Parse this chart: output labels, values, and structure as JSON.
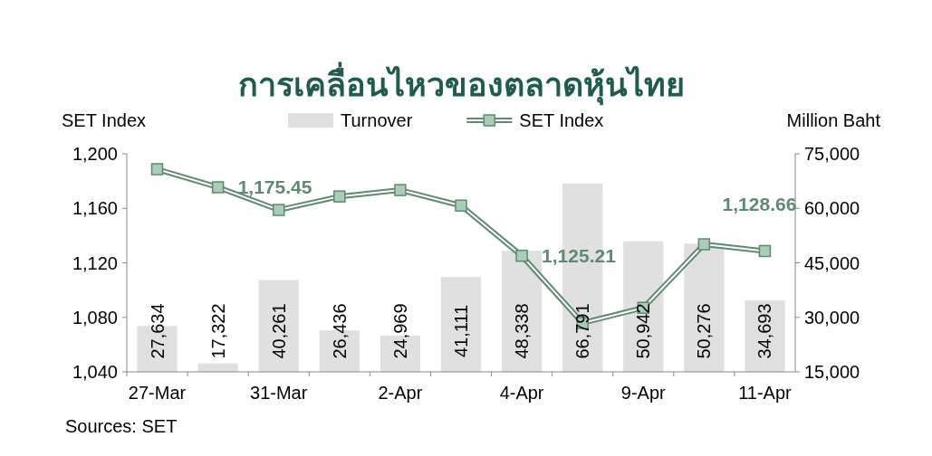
{
  "chart_data": {
    "type": "bar",
    "title": "การเคลื่อนไหวของตลาดหุ้นไทย",
    "ylabel": "SET Index",
    "y2label": "Million Baht",
    "categories": [
      "27-Mar",
      null,
      "31-Mar",
      null,
      "2-Apr",
      null,
      "4-Apr",
      null,
      "9-Apr",
      null,
      "11-Apr"
    ],
    "series": [
      {
        "name": "Turnover",
        "axis": "y2",
        "color": "#e0e0e0",
        "values": [
          27634,
          17322,
          40261,
          26436,
          24969,
          41111,
          48338,
          66791,
          50942,
          50276,
          34693
        ],
        "value_labels": [
          "27,634",
          "17,322",
          "40,261",
          "26,436",
          "24,969",
          "41,111",
          "48,338",
          "66,791",
          "50,942",
          "50,276",
          "34,693"
        ]
      },
      {
        "name": "SET Index",
        "type": "line",
        "color": "#5e8a70",
        "marker": "square",
        "values": [
          1188.7,
          1175.45,
          1158.8,
          1168.7,
          1173.4,
          1162,
          1125.21,
          1075.9,
          1087,
          1133.6,
          1128.66
        ],
        "value_labels": [
          null,
          "1,175.45",
          null,
          null,
          null,
          null,
          "1,125.21",
          null,
          null,
          null,
          "1,128.66"
        ]
      }
    ],
    "ylim": [
      1040,
      1200
    ],
    "yticks": [
      {
        "value": 1040,
        "label": "1,040"
      },
      {
        "value": 1080,
        "label": "1,080"
      },
      {
        "value": 1120,
        "label": "1,120"
      },
      {
        "value": 1160,
        "label": "1,160"
      },
      {
        "value": 1200,
        "label": "1,200"
      }
    ],
    "y2lim": [
      15000,
      75000
    ],
    "y2ticks": [
      {
        "value": 15000,
        "label": "15,000"
      },
      {
        "value": 30000,
        "label": "30,000"
      },
      {
        "value": 45000,
        "label": "45,000"
      },
      {
        "value": 60000,
        "label": "60,000"
      },
      {
        "value": 75000,
        "label": "75,000"
      }
    ],
    "grid": false,
    "legend": "top",
    "line_style": "solid",
    "annotations": [
      "Sources: SET"
    ]
  }
}
